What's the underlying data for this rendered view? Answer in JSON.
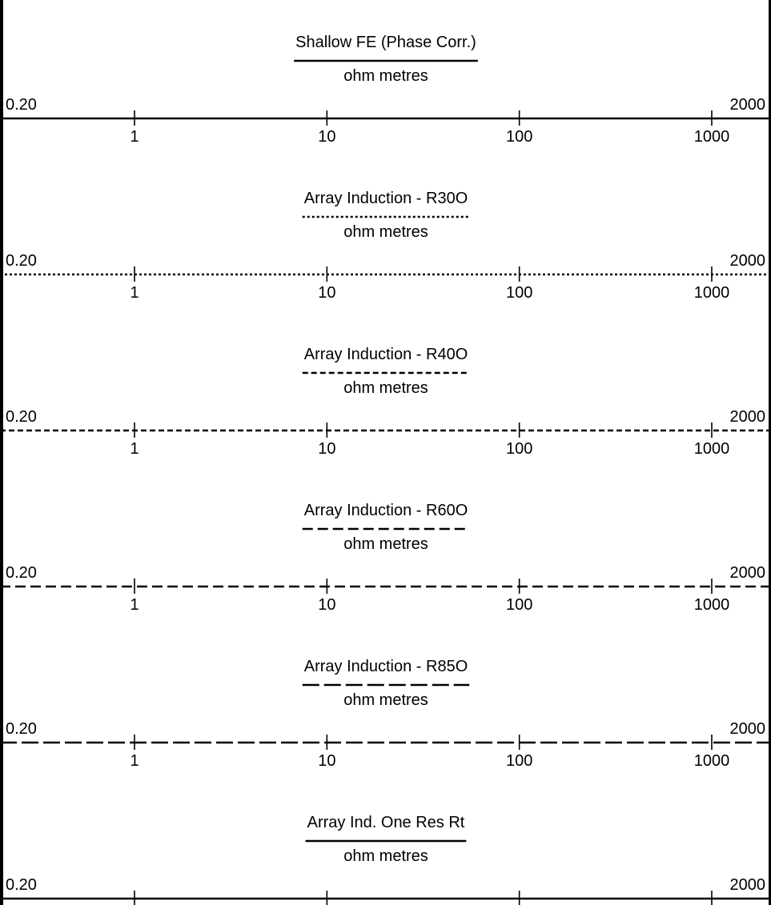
{
  "header": {
    "tracks": [
      {
        "title": "Shallow FE (Phase Corr.)",
        "unit": "ohm metres",
        "min_label": "0.20",
        "max_label": "2000",
        "line_style": "solid",
        "tick_labels": [
          "1",
          "10",
          "100",
          "1000"
        ]
      },
      {
        "title": "Array Induction - R30O",
        "unit": "ohm metres",
        "min_label": "0.20",
        "max_label": "2000",
        "line_style": "dotted",
        "tick_labels": [
          "1",
          "10",
          "100",
          "1000"
        ]
      },
      {
        "title": "Array Induction - R40O",
        "unit": "ohm metres",
        "min_label": "0.20",
        "max_label": "2000",
        "line_style": "short-dash",
        "tick_labels": [
          "1",
          "10",
          "100",
          "1000"
        ]
      },
      {
        "title": "Array Induction - R60O",
        "unit": "ohm metres",
        "min_label": "0.20",
        "max_label": "2000",
        "line_style": "medium-dash",
        "tick_labels": [
          "1",
          "10",
          "100",
          "1000"
        ]
      },
      {
        "title": "Array Induction - R85O",
        "unit": "ohm metres",
        "min_label": "0.20",
        "max_label": "2000",
        "line_style": "long-dash",
        "tick_labels": [
          "1",
          "10",
          "100",
          "1000"
        ]
      },
      {
        "title": "Array Ind. One Res Rt",
        "unit": "ohm metres",
        "min_label": "0.20",
        "max_label": "2000",
        "line_style": "solid",
        "tick_labels": []
      }
    ],
    "scale": {
      "type": "log",
      "min": 0.2,
      "max": 2000,
      "ticks": [
        1,
        10,
        100,
        1000
      ]
    },
    "colors": {
      "line": "#000000",
      "background": "#ffffff"
    }
  }
}
